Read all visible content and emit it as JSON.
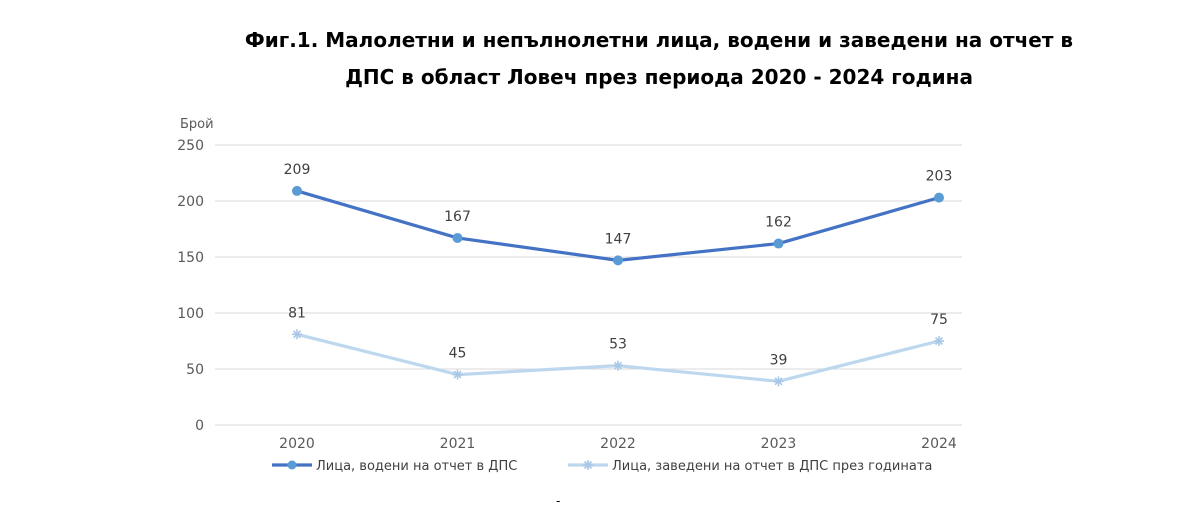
{
  "chart_data": {
    "type": "line",
    "title_line1": "Фиг.1. Малолетни и непълнолетни лица, водени и заведени на отчет в",
    "title_line2": "ДПС в област Ловеч през периода 2020 - 2024 година",
    "ylabel": "Брой",
    "xlabel": "",
    "categories": [
      "2020",
      "2021",
      "2022",
      "2023",
      "2024"
    ],
    "ylim": [
      0,
      250
    ],
    "yticks": [
      0,
      50,
      100,
      150,
      200,
      250
    ],
    "grid": true,
    "legend_position": "bottom",
    "series": [
      {
        "name": "Лица, водени на отчет в ДПС",
        "values": [
          209,
          167,
          147,
          162,
          203
        ],
        "color": "#4472C4",
        "point_color": "#5B9BD5",
        "marker": "circle"
      },
      {
        "name": "Лица, заведени на отчет в ДПС през годината",
        "values": [
          81,
          45,
          53,
          39,
          75
        ],
        "color": "#BDD7EE",
        "point_color": "#BDD7EE",
        "marker": "star"
      }
    ]
  },
  "footer_mark": "-"
}
